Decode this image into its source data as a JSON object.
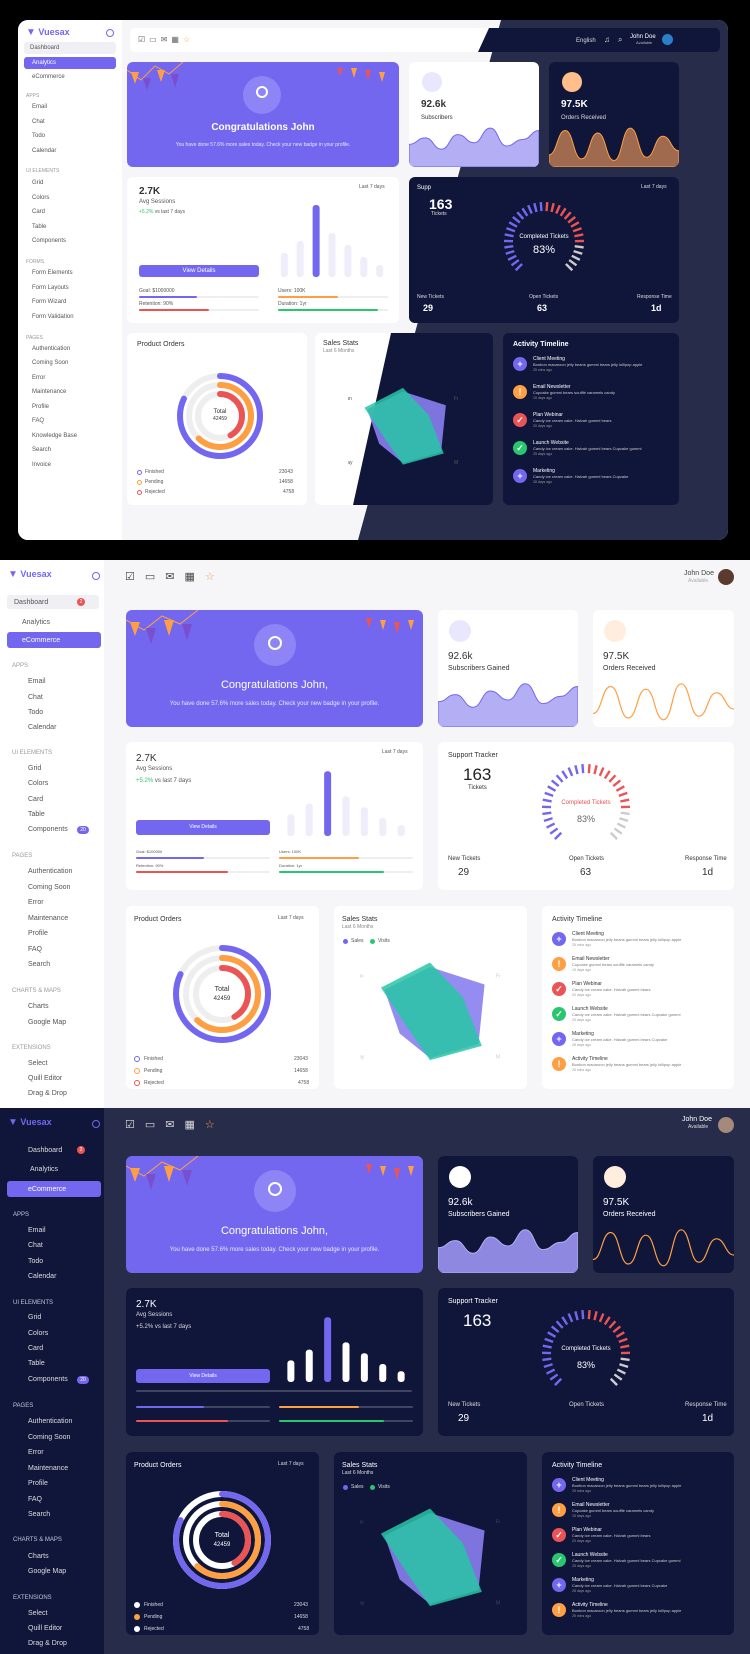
{
  "app": {
    "name": "Vuesax"
  },
  "sidebar": {
    "dashboard": "Dashboard",
    "dashboard_badge": "2",
    "analytics": "Analytics",
    "ecommerce": "eCommerce",
    "sec_apps": "APPS",
    "email": "Email",
    "chat": "Chat",
    "todo": "Todo",
    "calendar": "Calendar",
    "sec_ui": "UI ELEMENTS",
    "grid": "Grid",
    "colors": "Colors",
    "card": "Card",
    "table": "Table",
    "components": "Components",
    "components_badge": "20",
    "sec_forms": "FORMS",
    "form_elements": "Form Elements",
    "form_layouts": "Form Layouts",
    "form_wizard": "Form Wizard",
    "form_validation": "Form Validation",
    "sec_pages": "PAGES",
    "authentication": "Authentication",
    "coming_soon": "Coming Soon",
    "error": "Error",
    "maintenance": "Maintenance",
    "profile": "Profile",
    "faq": "FAQ",
    "knowledge_base": "Knowledge Base",
    "search": "Search",
    "invoice": "Invoice",
    "sec_charts": "CHARTS & MAPS",
    "charts": "Charts",
    "google_map": "Google Map",
    "sec_ext": "EXTENSIONS",
    "select": "Select",
    "quill_editor": "Quill Editor",
    "drag_drop": "Drag & Drop"
  },
  "header": {
    "language": "English",
    "user_name": "John Doe",
    "user_status": "Available"
  },
  "congrats": {
    "title1": "Congratulations John",
    "title2": "Congratulations John,",
    "text1": "You have done 57.6% more sales today. Check your new badge in your profile.",
    "text2": "You have done 57.6% more sales today. Check your new badge in your profile."
  },
  "subs": {
    "value": "92.6k",
    "label1": "Subscribers",
    "label2": "Subscribers Gained"
  },
  "orders": {
    "value": "97.5K",
    "label": "Orders Received"
  },
  "sessions": {
    "value": "2.7K",
    "label": "Avg Sessions",
    "period": "Last 7 days",
    "change_val": "+5.2%",
    "change_text": " vs last 7 days",
    "change_full": "+5.2% vs last 7 days",
    "button": "View Details",
    "goal1": "Goal: $1000000",
    "goal2": "Goal: $100000",
    "users1": "Users: 100K",
    "users2": "Users: 100K",
    "ret1": "Retention: 90%",
    "ret2": "Retention: 90%",
    "dur1": "Duration: 1yr",
    "dur2": "Duration: 1yr"
  },
  "support": {
    "title": "Support Tracker",
    "title_short": "Supp",
    "value": "163",
    "tickets": "Tickets",
    "completed": "Completed Tickets",
    "pct": "83%",
    "new_label": "New Tickets",
    "new_val": "29",
    "open_label": "Open Tickets",
    "open_val": "63",
    "resp_label": "Response Time",
    "resp_val": "1d",
    "period": "Last 7 days"
  },
  "product": {
    "title": "Product Orders",
    "period": "Last 7 days",
    "total": "Total",
    "total_val": "42459",
    "finished": "Finished",
    "finished_val": "23043",
    "pending": "Pending",
    "pending_val": "14658",
    "rejected": "Rejected",
    "rejected_val": "4758"
  },
  "sales": {
    "title": "Sales Stats",
    "subtitle": "Last 6 Months",
    "sales": "Sales",
    "visits": "Visits",
    "months": [
      "Jan",
      "Feb",
      "Mar",
      "Apr",
      "May",
      "Jun"
    ]
  },
  "timeline": {
    "title": "Activity Timeline",
    "items": [
      {
        "title": "Client Meeting",
        "text": "Bonbon macaroon jelly beans gummi bears jelly lollipop apple",
        "time": "25 mins ago"
      },
      {
        "title": "Email Newsletter",
        "text": "Cupcake gummi bears soufflé caramels candy",
        "time": "15 days ago"
      },
      {
        "title": "Plan Webinar",
        "text": "Candy ice cream cake. Halvah gummi bears",
        "time": "20 days ago"
      },
      {
        "title": "Launch Website",
        "text": "Candy ice cream cake. Halvah gummi bears Cupcake gummi",
        "time": "25 days ago"
      },
      {
        "title": "Marketing",
        "text": "Candy ice cream cake. Halvah gummi bears Cupcake",
        "time": "28 days ago"
      },
      {
        "title": "Activity Timeline",
        "text": "Bonbon macaroon jelly beans gummi bears jelly lollipop apple",
        "time": "25 mins ago"
      }
    ]
  },
  "chart_data": [
    {
      "type": "bar",
      "title": "Avg Sessions",
      "categories": [
        "1",
        "2",
        "3",
        "4",
        "5",
        "6",
        "7"
      ],
      "values": [
        30,
        45,
        90,
        55,
        40,
        25,
        15
      ]
    },
    {
      "type": "area",
      "title": "Subscribers Gained",
      "values": [
        28,
        36,
        22,
        40,
        30,
        48,
        26,
        34,
        45
      ]
    },
    {
      "type": "line",
      "title": "Orders Received",
      "values": [
        15,
        45,
        10,
        42,
        8,
        48,
        12,
        38,
        20
      ]
    },
    {
      "type": "radial",
      "title": "Support Tracker",
      "values": [
        83
      ]
    },
    {
      "type": "pie",
      "title": "Product Orders",
      "categories": [
        "Finished",
        "Pending",
        "Rejected"
      ],
      "values": [
        23043,
        14658,
        4758
      ]
    },
    {
      "type": "radar",
      "title": "Sales Stats",
      "categories": [
        "Jan",
        "Feb",
        "Mar",
        "Apr",
        "May",
        "Jun"
      ],
      "series": [
        {
          "name": "Sales",
          "values": [
            70,
            90,
            80,
            60,
            50,
            75
          ]
        },
        {
          "name": "Visits",
          "values": [
            85,
            60,
            95,
            70,
            40,
            90
          ]
        }
      ]
    }
  ],
  "colors": {
    "primary": "#7367f0",
    "success": "#28c76f",
    "warning": "#ff9f43",
    "danger": "#ea5455",
    "dark_bg": "#262c49",
    "dark_card": "#10163a"
  }
}
